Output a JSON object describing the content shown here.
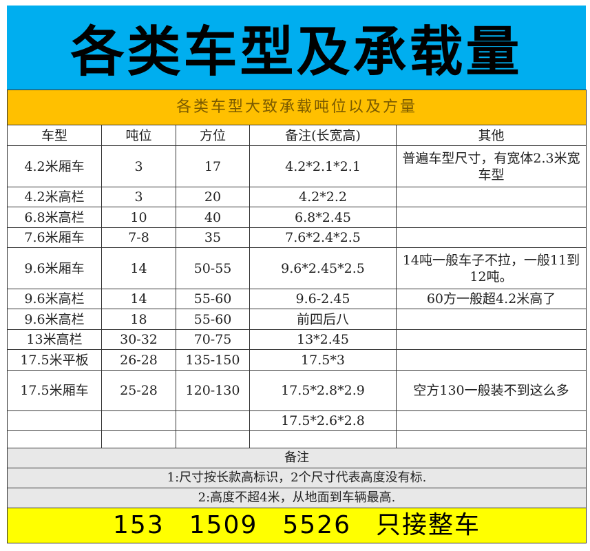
{
  "banner": {
    "title": "各类车型及承载量",
    "color": "#00AEEF"
  },
  "table": {
    "subtitle": "各类车型大致承载吨位以及方量",
    "subtitle_color": "#FFC000",
    "headers": [
      "车型",
      "吨位",
      "方位",
      "备注(长宽高)",
      "其他"
    ],
    "rows": [
      [
        "4.2米厢车",
        "3",
        "17",
        "4.2*2.1*2.1",
        "普遍车型尺寸，有宽体2.3米宽车型"
      ],
      [
        "4.2米高栏",
        "3",
        "20",
        "4.2*2.2",
        ""
      ],
      [
        "6.8米高栏",
        "10",
        "40",
        "6.8*2.45",
        ""
      ],
      [
        "7.6米厢车",
        "7-8",
        "35",
        "7.6*2.4*2.5",
        ""
      ],
      [
        "9.6米厢车",
        "14",
        "50-55",
        "9.6*2.45*2.5",
        "14吨一般车子不拉，一般11到12吨。"
      ],
      [
        "9.6米高栏",
        "14",
        "55-60",
        "9.6-2.45",
        "60方一般超4.2米高了"
      ],
      [
        "9.6米高栏",
        "18",
        "55-60",
        "前四后八",
        ""
      ],
      [
        "13米高栏",
        "30-32",
        "70-75",
        "13*2.45",
        ""
      ],
      [
        "17.5米平板",
        "26-28",
        "135-150",
        "17.5*3",
        ""
      ],
      [
        "17.5米厢车",
        "25-28",
        "120-130",
        "17.5*2.8*2.9",
        "空方130一般装不到这么多"
      ],
      [
        "",
        "",
        "",
        "17.5*2.6*2.8",
        ""
      ],
      [
        "",
        "",
        "",
        "",
        ""
      ]
    ],
    "notes_title": "备注",
    "notes": [
      "1:尺寸按长款高标识，2个尺寸代表高度没有标.",
      "2:高度不超4米，从地面到车辆最高."
    ],
    "notes_color": "#E8E8E8"
  },
  "footer": {
    "phone": [
      "153",
      "1509",
      "5526"
    ],
    "text": "只接整车",
    "color": "#FFFF00"
  }
}
